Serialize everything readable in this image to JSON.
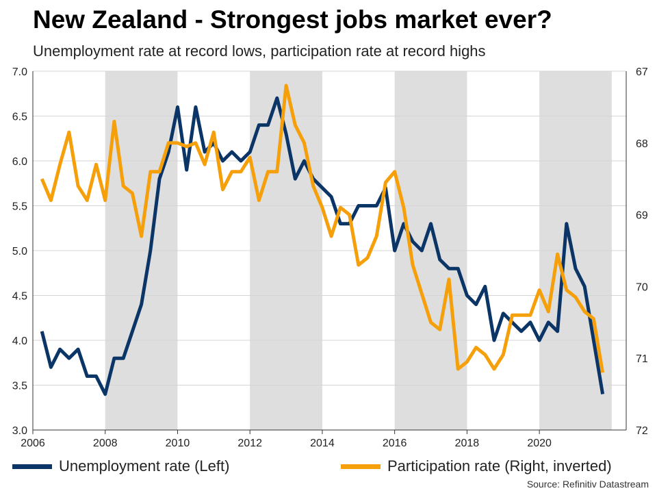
{
  "header": {
    "title": "New Zealand - Strongest jobs market ever?",
    "subtitle": "Unemployment rate at record lows, participation rate at record highs"
  },
  "source": "Source: Refinitiv Datastream",
  "colors": {
    "unemployment": "#0b3566",
    "participation": "#f5a00a",
    "shade": "#dedede",
    "grid": "#d4d4d4"
  },
  "chart_data": {
    "type": "line",
    "title": "New Zealand - Strongest jobs market ever?",
    "subtitle": "Unemployment rate at record lows, participation rate at record highs",
    "x_ticks": [
      2006,
      2008,
      2010,
      2012,
      2014,
      2016,
      2018,
      2020
    ],
    "xlim": [
      2006,
      2022.4
    ],
    "y_left": {
      "lim": [
        3.0,
        7.0
      ],
      "ticks": [
        "3.0",
        "3.5",
        "4.0",
        "4.5",
        "5.0",
        "5.5",
        "6.0",
        "6.5",
        "7.0"
      ]
    },
    "y_right": {
      "lim": [
        67,
        72
      ],
      "inverted": true,
      "ticks": [
        "67",
        "68",
        "69",
        "70",
        "71",
        "72"
      ]
    },
    "shaded_periods": [
      [
        2008,
        2010
      ],
      [
        2012,
        2014
      ],
      [
        2016,
        2018
      ],
      [
        2020,
        2022
      ]
    ],
    "grid": "horizontal",
    "legend_position": "bottom",
    "series": [
      {
        "name": "Unemployment rate (Left)",
        "axis": "left",
        "x": [
          2006.25,
          2006.5,
          2006.75,
          2007.0,
          2007.25,
          2007.5,
          2007.75,
          2008.0,
          2008.25,
          2008.5,
          2008.75,
          2009.0,
          2009.25,
          2009.5,
          2009.75,
          2010.0,
          2010.25,
          2010.5,
          2010.75,
          2011.0,
          2011.25,
          2011.5,
          2011.75,
          2012.0,
          2012.25,
          2012.5,
          2012.75,
          2013.0,
          2013.25,
          2013.5,
          2013.75,
          2014.0,
          2014.25,
          2014.5,
          2014.75,
          2015.0,
          2015.25,
          2015.5,
          2015.75,
          2016.0,
          2016.25,
          2016.5,
          2016.75,
          2017.0,
          2017.25,
          2017.5,
          2017.75,
          2018.0,
          2018.25,
          2018.5,
          2018.75,
          2019.0,
          2019.25,
          2019.5,
          2019.75,
          2020.0,
          2020.25,
          2020.5,
          2020.75,
          2021.0,
          2021.25,
          2021.5,
          2021.75
        ],
        "values": [
          4.1,
          3.7,
          3.9,
          3.8,
          3.9,
          3.6,
          3.6,
          3.4,
          3.8,
          3.8,
          4.1,
          4.4,
          5.0,
          5.8,
          6.1,
          6.6,
          5.9,
          6.6,
          6.1,
          6.2,
          6.0,
          6.1,
          6.0,
          6.1,
          6.4,
          6.4,
          6.7,
          6.3,
          5.8,
          6.0,
          5.8,
          5.7,
          5.6,
          5.3,
          5.3,
          5.5,
          5.5,
          5.5,
          5.7,
          5.0,
          5.3,
          5.1,
          5.0,
          5.3,
          4.9,
          4.8,
          4.8,
          4.5,
          4.4,
          4.6,
          4.0,
          4.3,
          4.2,
          4.1,
          4.2,
          4.0,
          4.2,
          4.1,
          5.3,
          4.8,
          4.6,
          4.0,
          3.4
        ]
      },
      {
        "name": "Participation rate (Right, inverted)",
        "axis": "right",
        "x": [
          2006.25,
          2006.5,
          2006.75,
          2007.0,
          2007.25,
          2007.5,
          2007.75,
          2008.0,
          2008.25,
          2008.5,
          2008.75,
          2009.0,
          2009.25,
          2009.5,
          2009.75,
          2010.0,
          2010.25,
          2010.5,
          2010.75,
          2011.0,
          2011.25,
          2011.5,
          2011.75,
          2012.0,
          2012.25,
          2012.5,
          2012.75,
          2013.0,
          2013.25,
          2013.5,
          2013.75,
          2014.0,
          2014.25,
          2014.5,
          2014.75,
          2015.0,
          2015.25,
          2015.5,
          2015.75,
          2016.0,
          2016.25,
          2016.5,
          2016.75,
          2017.0,
          2017.25,
          2017.5,
          2017.75,
          2018.0,
          2018.25,
          2018.5,
          2018.75,
          2019.0,
          2019.25,
          2019.5,
          2019.75,
          2020.0,
          2020.25,
          2020.5,
          2020.75,
          2021.0,
          2021.25,
          2021.5,
          2021.75
        ],
        "values": [
          68.5,
          68.8,
          68.3,
          67.85,
          68.6,
          68.8,
          68.3,
          68.8,
          67.7,
          68.6,
          68.7,
          69.3,
          68.4,
          68.4,
          68.0,
          68.0,
          68.05,
          68.0,
          68.3,
          67.85,
          68.65,
          68.4,
          68.4,
          68.2,
          68.8,
          68.4,
          68.4,
          67.2,
          67.75,
          68.0,
          68.6,
          68.9,
          69.3,
          68.9,
          69.0,
          69.7,
          69.6,
          69.3,
          68.55,
          68.4,
          68.9,
          69.7,
          70.1,
          70.5,
          70.6,
          69.9,
          71.15,
          71.05,
          70.85,
          70.95,
          71.15,
          70.95,
          70.4,
          70.4,
          70.4,
          70.05,
          70.35,
          69.55,
          70.05,
          70.15,
          70.35,
          70.45,
          71.2
        ]
      }
    ]
  }
}
